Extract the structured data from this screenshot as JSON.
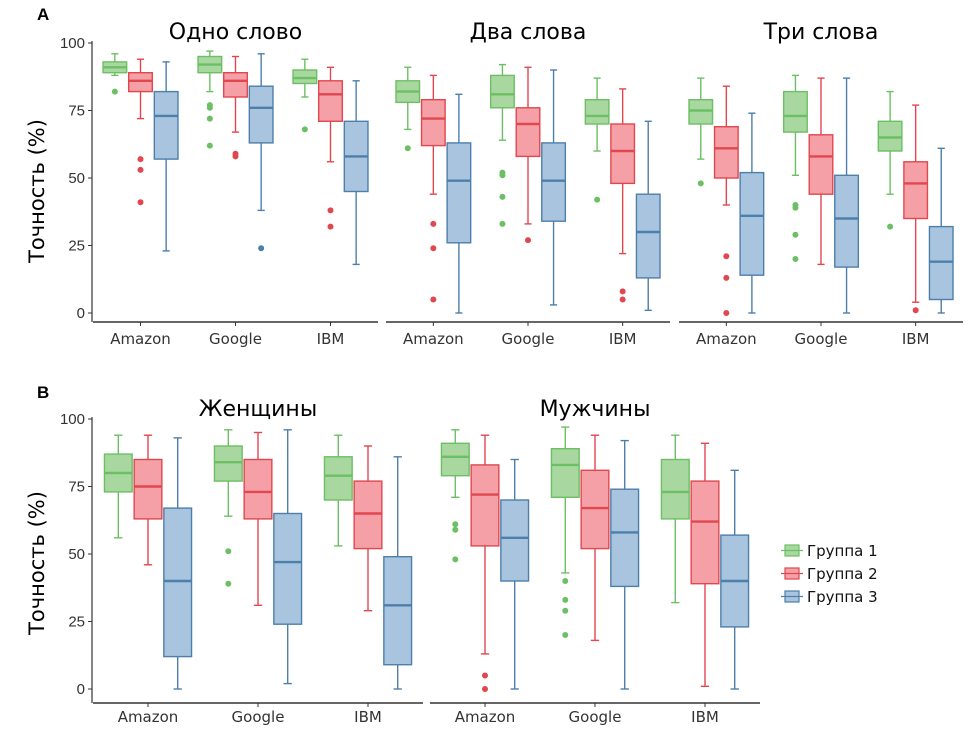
{
  "colors": {
    "g1_fill": "#a8d8a0",
    "g1_stroke": "#6cbf64",
    "g2_fill": "#f4a0a6",
    "g2_stroke": "#e0474f",
    "g3_fill": "#a9c4de",
    "g3_stroke": "#4d7fab",
    "axis": "#333333"
  },
  "chart_data": [
    {
      "panel": "A",
      "type": "box",
      "ylabel": "Точность (%)",
      "yticks": [
        0,
        25,
        50,
        75,
        100
      ],
      "ylim": [
        0,
        100
      ],
      "legend": [
        "Группа 1",
        "Группа 2",
        "Группа 3"
      ],
      "facets": [
        {
          "title": "Одно слово",
          "categories": [
            "Amazon",
            "Google",
            "IBM"
          ],
          "boxes": [
            [
              {
                "group": 1,
                "min": 88,
                "q1": 89,
                "median": 91,
                "q3": 93,
                "max": 96,
                "outliers": [
                  82
                ]
              },
              {
                "group": 2,
                "min": 72,
                "q1": 82,
                "median": 86,
                "q3": 89,
                "max": 94,
                "outliers": [
                  57,
                  53,
                  41
                ]
              },
              {
                "group": 3,
                "min": 23,
                "q1": 57,
                "median": 73,
                "q3": 82,
                "max": 93,
                "outliers": []
              }
            ],
            [
              {
                "group": 1,
                "min": 82,
                "q1": 89,
                "median": 92,
                "q3": 95,
                "max": 97,
                "outliers": [
                  77,
                  76,
                  72,
                  62
                ]
              },
              {
                "group": 2,
                "min": 67,
                "q1": 80,
                "median": 86,
                "q3": 89,
                "max": 95,
                "outliers": [
                  59,
                  58
                ]
              },
              {
                "group": 3,
                "min": 38,
                "q1": 63,
                "median": 76,
                "q3": 84,
                "max": 96,
                "outliers": [
                  24
                ]
              }
            ],
            [
              {
                "group": 1,
                "min": 80,
                "q1": 85,
                "median": 87,
                "q3": 90,
                "max": 94,
                "outliers": [
                  68
                ]
              },
              {
                "group": 2,
                "min": 56,
                "q1": 71,
                "median": 81,
                "q3": 86,
                "max": 91,
                "outliers": [
                  38,
                  32
                ]
              },
              {
                "group": 3,
                "min": 18,
                "q1": 45,
                "median": 58,
                "q3": 71,
                "max": 86,
                "outliers": []
              }
            ]
          ]
        },
        {
          "title": "Два слова",
          "categories": [
            "Amazon",
            "Google",
            "IBM"
          ],
          "boxes": [
            [
              {
                "group": 1,
                "min": 68,
                "q1": 78,
                "median": 82,
                "q3": 86,
                "max": 91,
                "outliers": [
                  61
                ]
              },
              {
                "group": 2,
                "min": 44,
                "q1": 62,
                "median": 72,
                "q3": 79,
                "max": 88,
                "outliers": [
                  33,
                  24,
                  5
                ]
              },
              {
                "group": 3,
                "min": 0,
                "q1": 26,
                "median": 49,
                "q3": 63,
                "max": 81,
                "outliers": []
              }
            ],
            [
              {
                "group": 1,
                "min": 64,
                "q1": 76,
                "median": 81,
                "q3": 88,
                "max": 92,
                "outliers": [
                  52,
                  51,
                  43,
                  33
                ]
              },
              {
                "group": 2,
                "min": 33,
                "q1": 58,
                "median": 70,
                "q3": 76,
                "max": 91,
                "outliers": [
                  27
                ]
              },
              {
                "group": 3,
                "min": 3,
                "q1": 34,
                "median": 49,
                "q3": 63,
                "max": 90,
                "outliers": []
              }
            ],
            [
              {
                "group": 1,
                "min": 60,
                "q1": 70,
                "median": 73,
                "q3": 79,
                "max": 87,
                "outliers": [
                  42
                ]
              },
              {
                "group": 2,
                "min": 22,
                "q1": 48,
                "median": 60,
                "q3": 70,
                "max": 83,
                "outliers": [
                  8,
                  5
                ]
              },
              {
                "group": 3,
                "min": 1,
                "q1": 13,
                "median": 30,
                "q3": 44,
                "max": 71,
                "outliers": []
              }
            ]
          ]
        },
        {
          "title": "Три слова",
          "categories": [
            "Amazon",
            "Google",
            "IBM"
          ],
          "boxes": [
            [
              {
                "group": 1,
                "min": 57,
                "q1": 70,
                "median": 75,
                "q3": 79,
                "max": 87,
                "outliers": [
                  48
                ]
              },
              {
                "group": 2,
                "min": 40,
                "q1": 50,
                "median": 61,
                "q3": 69,
                "max": 84,
                "outliers": [
                  21,
                  13,
                  0
                ]
              },
              {
                "group": 3,
                "min": 0,
                "q1": 14,
                "median": 36,
                "q3": 52,
                "max": 74,
                "outliers": []
              }
            ],
            [
              {
                "group": 1,
                "min": 51,
                "q1": 67,
                "median": 73,
                "q3": 82,
                "max": 88,
                "outliers": [
                  40,
                  39,
                  29,
                  20
                ]
              },
              {
                "group": 2,
                "min": 18,
                "q1": 44,
                "median": 58,
                "q3": 66,
                "max": 87,
                "outliers": []
              },
              {
                "group": 3,
                "min": 0,
                "q1": 17,
                "median": 35,
                "q3": 51,
                "max": 87,
                "outliers": []
              }
            ],
            [
              {
                "group": 1,
                "min": 44,
                "q1": 60,
                "median": 65,
                "q3": 71,
                "max": 82,
                "outliers": [
                  32
                ]
              },
              {
                "group": 2,
                "min": 4,
                "q1": 35,
                "median": 48,
                "q3": 56,
                "max": 77,
                "outliers": [
                  1
                ]
              },
              {
                "group": 3,
                "min": 0,
                "q1": 5,
                "median": 19,
                "q3": 32,
                "max": 61,
                "outliers": []
              }
            ]
          ]
        }
      ]
    },
    {
      "panel": "B",
      "type": "box",
      "ylabel": "Точность (%)",
      "yticks": [
        0,
        25,
        50,
        75,
        100
      ],
      "ylim": [
        0,
        100
      ],
      "legend": [
        "Группа 1",
        "Группа 2",
        "Группа 3"
      ],
      "facets": [
        {
          "title": "Женщины",
          "categories": [
            "Amazon",
            "Google",
            "IBM"
          ],
          "boxes": [
            [
              {
                "group": 1,
                "min": 56,
                "q1": 73,
                "median": 80,
                "q3": 87,
                "max": 94,
                "outliers": []
              },
              {
                "group": 2,
                "min": 46,
                "q1": 63,
                "median": 75,
                "q3": 85,
                "max": 94,
                "outliers": []
              },
              {
                "group": 3,
                "min": 0,
                "q1": 12,
                "median": 40,
                "q3": 67,
                "max": 93,
                "outliers": []
              }
            ],
            [
              {
                "group": 1,
                "min": 64,
                "q1": 77,
                "median": 84,
                "q3": 90,
                "max": 96,
                "outliers": [
                  51,
                  39
                ]
              },
              {
                "group": 2,
                "min": 31,
                "q1": 63,
                "median": 73,
                "q3": 85,
                "max": 95,
                "outliers": []
              },
              {
                "group": 3,
                "min": 2,
                "q1": 24,
                "median": 47,
                "q3": 65,
                "max": 96,
                "outliers": []
              }
            ],
            [
              {
                "group": 1,
                "min": 53,
                "q1": 70,
                "median": 79,
                "q3": 86,
                "max": 94,
                "outliers": []
              },
              {
                "group": 2,
                "min": 29,
                "q1": 52,
                "median": 65,
                "q3": 77,
                "max": 90,
                "outliers": []
              },
              {
                "group": 3,
                "min": 0,
                "q1": 9,
                "median": 31,
                "q3": 49,
                "max": 86,
                "outliers": []
              }
            ]
          ]
        },
        {
          "title": "Мужчины",
          "categories": [
            "Amazon",
            "Google",
            "IBM"
          ],
          "boxes": [
            [
              {
                "group": 1,
                "min": 71,
                "q1": 79,
                "median": 86,
                "q3": 91,
                "max": 96,
                "outliers": [
                  61,
                  59,
                  48
                ]
              },
              {
                "group": 2,
                "min": 13,
                "q1": 53,
                "median": 72,
                "q3": 83,
                "max": 94,
                "outliers": [
                  5,
                  0
                ]
              },
              {
                "group": 3,
                "min": 0,
                "q1": 40,
                "median": 56,
                "q3": 70,
                "max": 85,
                "outliers": []
              }
            ],
            [
              {
                "group": 1,
                "min": 43,
                "q1": 71,
                "median": 83,
                "q3": 89,
                "max": 97,
                "outliers": [
                  40,
                  33,
                  29,
                  20
                ]
              },
              {
                "group": 2,
                "min": 18,
                "q1": 52,
                "median": 67,
                "q3": 81,
                "max": 94,
                "outliers": []
              },
              {
                "group": 3,
                "min": 0,
                "q1": 38,
                "median": 58,
                "q3": 74,
                "max": 92,
                "outliers": []
              }
            ],
            [
              {
                "group": 1,
                "min": 32,
                "q1": 63,
                "median": 73,
                "q3": 85,
                "max": 94,
                "outliers": []
              },
              {
                "group": 2,
                "min": 1,
                "q1": 39,
                "median": 62,
                "q3": 77,
                "max": 91,
                "outliers": []
              },
              {
                "group": 3,
                "min": 0,
                "q1": 23,
                "median": 40,
                "q3": 57,
                "max": 81,
                "outliers": []
              }
            ]
          ]
        }
      ]
    }
  ]
}
